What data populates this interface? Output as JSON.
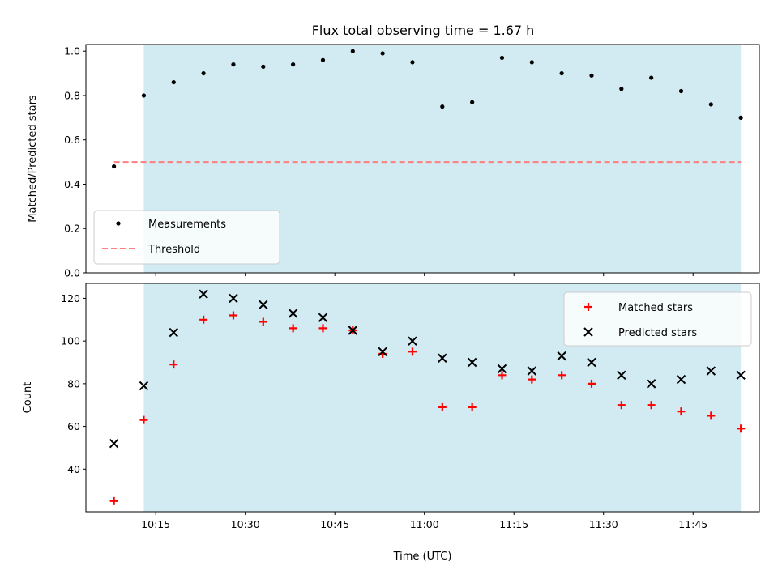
{
  "title": "Flux total observing time = 1.67 h",
  "colors": {
    "shade": "#add8e6",
    "threshold": "#ff7f7f",
    "matched": "#ff0000",
    "predicted": "#000000",
    "measurement": "#000000"
  },
  "chart_data": [
    {
      "type": "scatter",
      "xlabel": "",
      "ylabel": "Matched/Predicted stars",
      "ylim": [
        0,
        1.03
      ],
      "yticks": [
        "0.0",
        "0.2",
        "0.4",
        "0.6",
        "0.8",
        "1.0"
      ],
      "shaded_span": [
        "10:13",
        "11:53"
      ],
      "legend_position": "lower-left",
      "series": [
        {
          "name": "Measurements",
          "marker": "dot",
          "x": [
            "10:08",
            "10:13",
            "10:18",
            "10:23",
            "10:28",
            "10:33",
            "10:38",
            "10:43",
            "10:48",
            "10:53",
            "10:58",
            "11:03",
            "11:08",
            "11:13",
            "11:18",
            "11:23",
            "11:28",
            "11:33",
            "11:38",
            "11:43",
            "11:48",
            "11:53"
          ],
          "y": [
            0.48,
            0.8,
            0.86,
            0.9,
            0.94,
            0.93,
            0.94,
            0.96,
            1.0,
            0.99,
            0.95,
            0.75,
            0.77,
            0.97,
            0.95,
            0.9,
            0.89,
            0.83,
            0.88,
            0.82,
            0.76,
            0.7
          ]
        },
        {
          "name": "Threshold",
          "style": "dashed-line",
          "x": [
            "10:08",
            "11:53"
          ],
          "y": [
            0.5,
            0.5
          ]
        }
      ]
    },
    {
      "type": "scatter",
      "xlabel": "Time (UTC)",
      "ylabel": "Count",
      "ylim": [
        20,
        127
      ],
      "yticks": [
        "40",
        "60",
        "80",
        "100",
        "120"
      ],
      "xticks": [
        "10:15",
        "10:30",
        "10:45",
        "11:00",
        "11:15",
        "11:30",
        "11:45"
      ],
      "shaded_span": [
        "10:13",
        "11:53"
      ],
      "legend_position": "upper-right",
      "series": [
        {
          "name": "Matched stars",
          "marker": "plus",
          "x": [
            "10:08",
            "10:13",
            "10:18",
            "10:23",
            "10:28",
            "10:33",
            "10:38",
            "10:43",
            "10:48",
            "10:53",
            "10:58",
            "11:03",
            "11:08",
            "11:13",
            "11:18",
            "11:23",
            "11:28",
            "11:33",
            "11:38",
            "11:43",
            "11:48",
            "11:53"
          ],
          "y": [
            25,
            63,
            89,
            110,
            112,
            109,
            106,
            106,
            105,
            94,
            95,
            69,
            69,
            84,
            82,
            84,
            80,
            70,
            70,
            67,
            65,
            59
          ]
        },
        {
          "name": "Predicted stars",
          "marker": "x",
          "x": [
            "10:08",
            "10:13",
            "10:18",
            "10:23",
            "10:28",
            "10:33",
            "10:38",
            "10:43",
            "10:48",
            "10:53",
            "10:58",
            "11:03",
            "11:08",
            "11:13",
            "11:18",
            "11:23",
            "11:28",
            "11:33",
            "11:38",
            "11:43",
            "11:48",
            "11:53"
          ],
          "y": [
            52,
            79,
            104,
            122,
            120,
            117,
            113,
            111,
            105,
            95,
            100,
            92,
            90,
            87,
            86,
            93,
            90,
            84,
            80,
            82,
            86,
            84
          ]
        }
      ]
    }
  ]
}
